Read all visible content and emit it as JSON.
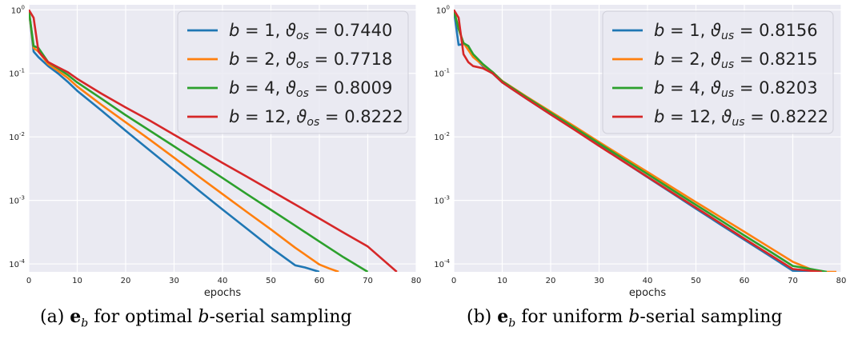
{
  "chart_data": [
    {
      "type": "line",
      "yscale": "log",
      "xlabel": "epochs",
      "xlim": [
        0,
        80
      ],
      "ylim": [
        7.5e-05,
        1.2
      ],
      "xticks": [
        "0",
        "10",
        "20",
        "30",
        "40",
        "50",
        "60",
        "70",
        "80"
      ],
      "yticks": [
        {
          "value": 1,
          "mant": "10",
          "exp": "0"
        },
        {
          "value": 0.1,
          "mant": "10",
          "exp": "-1"
        },
        {
          "value": 0.01,
          "mant": "10",
          "exp": "-2"
        },
        {
          "value": 0.001,
          "mant": "10",
          "exp": "-3"
        },
        {
          "value": 0.0001,
          "mant": "10",
          "exp": "-4"
        }
      ],
      "grid": true,
      "legend_position": "top-right",
      "series": [
        {
          "name": "b = 1, ϑos = 0.7440",
          "legend": {
            "b": "1",
            "sub": "os",
            "val": "0.7440"
          },
          "color": "#1f77b4",
          "x": [
            0,
            1,
            2,
            4,
            6,
            8,
            10,
            15,
            20,
            25,
            30,
            35,
            40,
            45,
            50,
            55,
            57,
            60
          ],
          "y": [
            1.0,
            0.22,
            0.18,
            0.13,
            0.1,
            0.074,
            0.053,
            0.026,
            0.0125,
            0.0061,
            0.003,
            0.00145,
            0.00072,
            0.00036,
            0.00018,
            9.5e-05,
            8.8e-05,
            7.5e-05
          ]
        },
        {
          "name": "b = 2, ϑos = 0.7718",
          "legend": {
            "b": "2",
            "sub": "os",
            "val": "0.7718"
          },
          "color": "#ff7f0e",
          "x": [
            0,
            1,
            2,
            4,
            6,
            8,
            10,
            15,
            20,
            25,
            30,
            35,
            40,
            45,
            50,
            55,
            60,
            62,
            64
          ],
          "y": [
            1.0,
            0.25,
            0.22,
            0.14,
            0.11,
            0.085,
            0.062,
            0.032,
            0.017,
            0.009,
            0.0047,
            0.0024,
            0.00126,
            0.00066,
            0.00035,
            0.00018,
            9.8e-05,
            8.5e-05,
            7.5e-05
          ]
        },
        {
          "name": "b = 4, ϑos = 0.8009",
          "legend": {
            "b": "4",
            "sub": "os",
            "val": "0.8009"
          },
          "color": "#2ca02c",
          "x": [
            0,
            1,
            2,
            4,
            6,
            8,
            10,
            15,
            20,
            25,
            30,
            35,
            40,
            45,
            50,
            55,
            60,
            65,
            70
          ],
          "y": [
            1.0,
            0.27,
            0.25,
            0.15,
            0.12,
            0.095,
            0.072,
            0.04,
            0.022,
            0.0125,
            0.0071,
            0.004,
            0.00225,
            0.00126,
            0.00071,
            0.0004,
            0.000225,
            0.000127,
            7.5e-05
          ]
        },
        {
          "name": "b = 12, ϑos = 0.8222",
          "legend": {
            "b": "12",
            "sub": "os",
            "val": "0.8222"
          },
          "color": "#d62728",
          "x": [
            0,
            1,
            2,
            4,
            6,
            8,
            10,
            15,
            20,
            25,
            30,
            35,
            40,
            45,
            50,
            55,
            60,
            65,
            70,
            76
          ],
          "y": [
            1.0,
            0.75,
            0.22,
            0.15,
            0.125,
            0.105,
            0.082,
            0.048,
            0.029,
            0.018,
            0.0108,
            0.0065,
            0.0039,
            0.00237,
            0.00143,
            0.00086,
            0.00052,
            0.00031,
            0.000188,
            7.5e-05
          ]
        }
      ]
    },
    {
      "type": "line",
      "yscale": "log",
      "xlabel": "epochs",
      "xlim": [
        0,
        80
      ],
      "ylim": [
        7.5e-05,
        1.2
      ],
      "xticks": [
        "0",
        "10",
        "20",
        "30",
        "40",
        "50",
        "60",
        "70",
        "80"
      ],
      "yticks": [
        {
          "value": 1,
          "mant": "10",
          "exp": "0"
        },
        {
          "value": 0.1,
          "mant": "10",
          "exp": "-1"
        },
        {
          "value": 0.01,
          "mant": "10",
          "exp": "-2"
        },
        {
          "value": 0.001,
          "mant": "10",
          "exp": "-3"
        },
        {
          "value": 0.0001,
          "mant": "10",
          "exp": "-4"
        }
      ],
      "grid": true,
      "legend_position": "top-right",
      "series": [
        {
          "name": "b = 1, ϑus = 0.8156",
          "legend": {
            "b": "1",
            "sub": "us",
            "val": "0.8156"
          },
          "color": "#1f77b4",
          "x": [
            0,
            1,
            2,
            3,
            4,
            6,
            8,
            10,
            15,
            20,
            25,
            30,
            35,
            40,
            45,
            50,
            55,
            60,
            65,
            70,
            76
          ],
          "y": [
            1.0,
            0.28,
            0.29,
            0.27,
            0.19,
            0.13,
            0.1,
            0.072,
            0.04,
            0.0225,
            0.013,
            0.0073,
            0.0041,
            0.00232,
            0.00131,
            0.00074,
            0.00042,
            0.00024,
            0.000137,
            7.8e-05,
            7.5e-05
          ]
        },
        {
          "name": "b = 2, ϑus = 0.8215",
          "legend": {
            "b": "2",
            "sub": "us",
            "val": "0.8215"
          },
          "color": "#ff7f0e",
          "x": [
            0,
            1,
            2,
            4,
            6,
            8,
            10,
            15,
            20,
            25,
            30,
            35,
            40,
            45,
            50,
            55,
            60,
            65,
            70,
            75,
            79
          ],
          "y": [
            1.0,
            0.5,
            0.3,
            0.18,
            0.135,
            0.105,
            0.076,
            0.043,
            0.025,
            0.0145,
            0.0083,
            0.0048,
            0.0028,
            0.00162,
            0.00094,
            0.00055,
            0.00032,
            0.000186,
            0.000108,
            7.5e-05,
            7.5e-05
          ]
        },
        {
          "name": "b = 4, ϑus = 0.8203",
          "legend": {
            "b": "4",
            "sub": "us",
            "val": "0.8203"
          },
          "color": "#2ca02c",
          "x": [
            0,
            1,
            2,
            3,
            4,
            6,
            8,
            10,
            15,
            20,
            25,
            30,
            35,
            40,
            45,
            50,
            55,
            60,
            65,
            70,
            77
          ],
          "y": [
            1.0,
            0.5,
            0.3,
            0.27,
            0.2,
            0.14,
            0.105,
            0.075,
            0.042,
            0.024,
            0.0138,
            0.0079,
            0.0045,
            0.0026,
            0.00148,
            0.00085,
            0.00049,
            0.00028,
            0.000162,
            9.3e-05,
            7.5e-05
          ]
        },
        {
          "name": "b = 12, ϑus = 0.8222",
          "legend": {
            "b": "12",
            "sub": "us",
            "val": "0.8222"
          },
          "color": "#d62728",
          "x": [
            0,
            1,
            2,
            3,
            4,
            6,
            8,
            10,
            15,
            20,
            25,
            30,
            35,
            40,
            45,
            50,
            55,
            60,
            65,
            70,
            76
          ],
          "y": [
            1.0,
            0.75,
            0.2,
            0.15,
            0.13,
            0.12,
            0.1,
            0.072,
            0.04,
            0.0225,
            0.0128,
            0.0072,
            0.0041,
            0.00235,
            0.00134,
            0.00077,
            0.00044,
            0.00025,
            0.000144,
            8.3e-05,
            7.5e-05
          ]
        }
      ]
    }
  ],
  "captions": {
    "a": {
      "label": "(a) ",
      "vec": "e",
      "sub": "b",
      "text": " for optimal ",
      "bvar": "b",
      "rest": "-serial sampling"
    },
    "b": {
      "label": "(b) ",
      "vec": "e",
      "sub": "b",
      "text": " for uniform ",
      "bvar": "b",
      "rest": "-serial sampling"
    }
  }
}
